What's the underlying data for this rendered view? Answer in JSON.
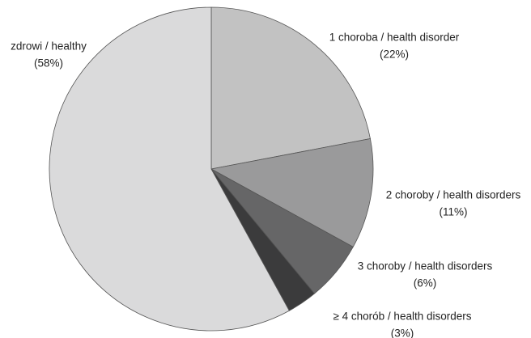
{
  "chart_data": {
    "type": "pie",
    "categories": [
      "1 choroba / health disorder",
      "2 choroby / health disorders",
      "3 choroby / health disorders",
      "≥ 4 chorób / health disorders",
      "zdrowi / healthy"
    ],
    "values": [
      22,
      11,
      6,
      3,
      58
    ],
    "value_labels": [
      "(22%)",
      "(11%)",
      "(6%)",
      "(3%)",
      "(58%)"
    ],
    "colors": [
      "#c2c2c2",
      "#9a9a9b",
      "#666667",
      "#3b3b3c",
      "#dadadb"
    ]
  }
}
